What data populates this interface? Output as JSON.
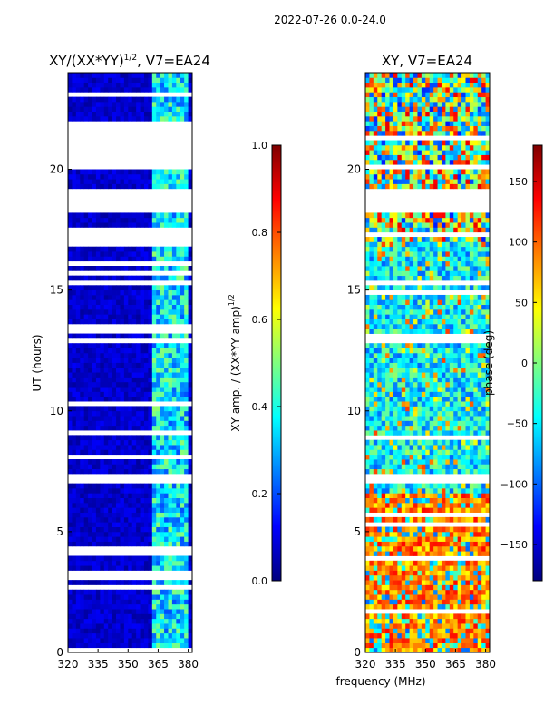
{
  "figure": {
    "suptitle": "2022-07-26 0.0-24.0",
    "shared_xlabel": "frequency (MHz)"
  },
  "chart_data": [
    {
      "type": "heatmap",
      "name": "amplitude",
      "title_main": "XY/(XX*YY)",
      "title_sup": "1/2",
      "title_tail": ", V7=EA24",
      "ylabel": "UT (hours)",
      "xlim": [
        320,
        382
      ],
      "ylim": [
        0,
        24
      ],
      "xticks": [
        "320",
        "335",
        "350",
        "365",
        "380"
      ],
      "xtick_values": [
        320,
        335,
        350,
        365,
        380
      ],
      "yticks": [
        "0",
        "5",
        "10",
        "15",
        "20"
      ],
      "ytick_values": [
        0,
        5,
        10,
        15,
        20
      ],
      "colorbar": {
        "label_main": "XY amp. / (XX*YY amp)",
        "label_sup": "1/2",
        "vmin": 0.0,
        "vmax": 1.0,
        "ticks": [
          "0.0",
          "0.2",
          "0.4",
          "0.6",
          "0.8",
          "1.0"
        ],
        "tick_values": [
          0.0,
          0.2,
          0.4,
          0.6,
          0.8,
          1.0
        ]
      },
      "bright_band_mhz": [
        363,
        380
      ],
      "blank_hours": [
        [
          20.3,
          21.8
        ],
        [
          18.2,
          19.2
        ],
        [
          16.9,
          17.7
        ],
        [
          7.0,
          7.3
        ]
      ]
    },
    {
      "type": "heatmap",
      "name": "phase",
      "title_main": "XY, V7=EA24",
      "ylabel": "phase (deg)",
      "xlim": [
        320,
        382
      ],
      "ylim": [
        0,
        24
      ],
      "xticks": [
        "320",
        "335",
        "350",
        "365",
        "380"
      ],
      "xtick_values": [
        320,
        335,
        350,
        365,
        380
      ],
      "yticks": [
        "0",
        "5",
        "10",
        "15",
        "20"
      ],
      "ytick_values": [
        0,
        5,
        10,
        15,
        20
      ],
      "colorbar": {
        "label_main": "phase (deg)",
        "vmin": -180,
        "vmax": 180,
        "ticks": [
          "−150",
          "−100",
          "−50",
          "0",
          "50",
          "100",
          "150"
        ],
        "tick_values": [
          -150,
          -100,
          -50,
          0,
          50,
          100,
          150
        ]
      },
      "blank_hours": [
        [
          18.2,
          19.2
        ],
        [
          7.0,
          7.3
        ]
      ]
    }
  ]
}
